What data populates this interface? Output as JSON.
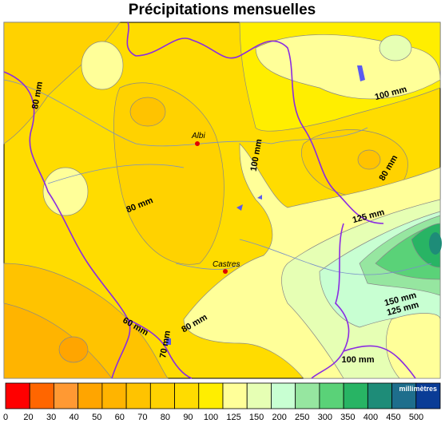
{
  "title": "Précipitations mensuelles",
  "cities": [
    "Albi",
    "Castres"
  ],
  "contour_labels": [
    "80 mm",
    "100 mm",
    "80 mm",
    "100 mm",
    "80 mm",
    "125 mm",
    "150 mm",
    "125 mm",
    "60 mm",
    "80 mm",
    "70 mm",
    "100 mm"
  ],
  "legend": {
    "unit": "millimètres",
    "ticks": [
      0,
      20,
      30,
      40,
      50,
      60,
      70,
      80,
      90,
      100,
      125,
      150,
      200,
      250,
      300,
      350,
      400,
      450,
      500
    ],
    "colors": [
      "#ff0000",
      "#ff6600",
      "#ff9933",
      "#ffa500",
      "#ffb400",
      "#ffc300",
      "#ffd200",
      "#ffdc00",
      "#ffee00",
      "#ffff99",
      "#e6ffb4",
      "#c8ffd2",
      "#96e6a0",
      "#5ad278",
      "#28b464",
      "#1e8c78",
      "#1e6e8c",
      "#0a3c96"
    ]
  }
}
